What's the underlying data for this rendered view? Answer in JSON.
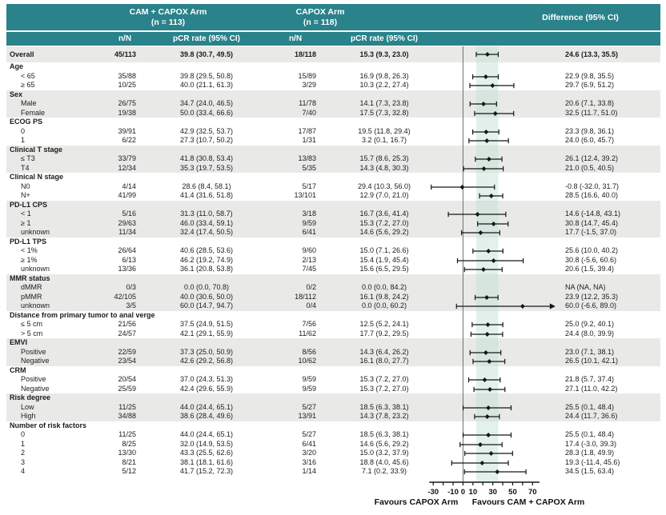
{
  "colors": {
    "header_teal": "#2a828b",
    "stripe_gray": "#e9eae8",
    "row_white": "#ffffff",
    "band_mint": "#bfe0d2",
    "zero_line": "#6e6e6e",
    "ci_line": "#161616",
    "text": "#1b1b1b"
  },
  "chart_data": {
    "type": "forest",
    "arms": [
      {
        "name": "CAM + CAPOX Arm",
        "n_label": "(n = 113)"
      },
      {
        "name": "CAPOX Arm",
        "n_label": "(n = 118)"
      }
    ],
    "columns": [
      "n/N",
      "pCR rate (95% CI)",
      "n/N",
      "pCR rate (95% CI)"
    ],
    "difference_label": "Difference (95% CI)",
    "axis": {
      "ticks": [
        -30,
        -20,
        -10,
        0,
        10,
        20,
        30,
        40,
        50,
        60,
        70
      ],
      "labeled_ticks": [
        -30,
        -10,
        0,
        10,
        30,
        50,
        70
      ],
      "domain": [
        -35,
        98
      ],
      "axis_span": [
        -34,
        77
      ],
      "zero_reference": 0,
      "overall_band": [
        13.3,
        35.5
      ],
      "grid": false
    },
    "favours": {
      "left": "Favours CAPOX Arm",
      "right": "Favours CAM + CAPOX Arm"
    },
    "sections": [
      {
        "label": null,
        "shaded": true,
        "rows": [
          {
            "label": "Overall",
            "bold": true,
            "cam_nN": "45/113",
            "cam_pcr": "39.8 (30.7, 49.5)",
            "capox_nN": "18/118",
            "capox_pcr": "15.3 (9.3, 23.0)",
            "diff": "24.6 (13.3, 35.5)",
            "est": 24.6,
            "lo": 13.3,
            "hi": 35.5
          }
        ]
      },
      {
        "label": "Age",
        "shaded": false,
        "rows": [
          {
            "label": "< 65",
            "cam_nN": "35/88",
            "cam_pcr": "39.8 (29.5, 50.8)",
            "capox_nN": "15/89",
            "capox_pcr": "16.9 (9.8, 26.3)",
            "diff": "22.9 (9.8, 35.5)",
            "est": 22.9,
            "lo": 9.8,
            "hi": 35.5
          },
          {
            "label": "≥ 65",
            "cam_nN": "10/25",
            "cam_pcr": "40.0 (21.1, 61.3)",
            "capox_nN": "3/29",
            "capox_pcr": "10.3 (2.2, 27.4)",
            "diff": "29.7 (6.9, 51.2)",
            "est": 29.7,
            "lo": 6.9,
            "hi": 51.2
          }
        ]
      },
      {
        "label": "Sex",
        "shaded": true,
        "rows": [
          {
            "label": "Male",
            "cam_nN": "26/75",
            "cam_pcr": "34.7 (24.0, 46.5)",
            "capox_nN": "11/78",
            "capox_pcr": "14.1 (7.3, 23.8)",
            "diff": "20.6 (7.1, 33.8)",
            "est": 20.6,
            "lo": 7.1,
            "hi": 33.8
          },
          {
            "label": "Female",
            "cam_nN": "19/38",
            "cam_pcr": "50.0 (33.4, 66.6)",
            "capox_nN": "7/40",
            "capox_pcr": "17.5 (7.3, 32.8)",
            "diff": "32.5 (11.7, 51.0)",
            "est": 32.5,
            "lo": 11.7,
            "hi": 51.0
          }
        ]
      },
      {
        "label": "ECOG PS",
        "shaded": false,
        "rows": [
          {
            "label": "0",
            "cam_nN": "39/91",
            "cam_pcr": "42.9 (32.5, 53.7)",
            "capox_nN": "17/87",
            "capox_pcr": "19.5 (11.8, 29.4)",
            "diff": "23.3 (9.8, 36.1)",
            "est": 23.3,
            "lo": 9.8,
            "hi": 36.1
          },
          {
            "label": "1",
            "cam_nN": "6/22",
            "cam_pcr": "27.3 (10.7, 50.2)",
            "capox_nN": "1/31",
            "capox_pcr": "3.2 (0.1, 16.7)",
            "diff": "24.0 (6.0, 45.7)",
            "est": 24.0,
            "lo": 6.0,
            "hi": 45.7
          }
        ]
      },
      {
        "label": "Clinical T stage",
        "shaded": true,
        "rows": [
          {
            "label": "≤ T3",
            "cam_nN": "33/79",
            "cam_pcr": "41.8 (30.8, 53.4)",
            "capox_nN": "13/83",
            "capox_pcr": "15.7 (8.6, 25.3)",
            "diff": "26.1 (12.4, 39.2)",
            "est": 26.1,
            "lo": 12.4,
            "hi": 39.2
          },
          {
            "label": "T4",
            "cam_nN": "12/34",
            "cam_pcr": "35.3 (19.7, 53.5)",
            "capox_nN": "5/35",
            "capox_pcr": "14.3 (4.8, 30.3)",
            "diff": "21.0 (0.5, 40.5)",
            "est": 21.0,
            "lo": 0.5,
            "hi": 40.5
          }
        ]
      },
      {
        "label": "Clinical N stage",
        "shaded": false,
        "rows": [
          {
            "label": "N0",
            "cam_nN": "4/14",
            "cam_pcr": "28.6 (8.4, 58.1)",
            "capox_nN": "5/17",
            "capox_pcr": "29.4 (10.3, 56.0)",
            "diff": "-0.8 (-32.0, 31.7)",
            "est": -0.8,
            "lo": -32.0,
            "hi": 31.7
          },
          {
            "label": "N+",
            "cam_nN": "41/99",
            "cam_pcr": "41.4 (31.6, 51.8)",
            "capox_nN": "13/101",
            "capox_pcr": "12.9 (7.0, 21.0)",
            "diff": "28.5 (16.6, 40.0)",
            "est": 28.5,
            "lo": 16.6,
            "hi": 40.0
          }
        ]
      },
      {
        "label": "PD-L1 CPS",
        "shaded": true,
        "rows": [
          {
            "label": "< 1",
            "cam_nN": "5/16",
            "cam_pcr": "31.3 (11.0, 58.7)",
            "capox_nN": "3/18",
            "capox_pcr": "16.7 (3.6, 41.4)",
            "diff": "14.6 (-14.8, 43.1)",
            "est": 14.6,
            "lo": -14.8,
            "hi": 43.1
          },
          {
            "label": "≥ 1",
            "cam_nN": "29/63",
            "cam_pcr": "46.0 (33.4, 59.1)",
            "capox_nN": "9/59",
            "capox_pcr": "15.3 (7.2, 27.0)",
            "diff": "30.8 (14.7, 45.4)",
            "est": 30.8,
            "lo": 14.7,
            "hi": 45.4
          },
          {
            "label": "unknown",
            "cam_nN": "11/34",
            "cam_pcr": "32.4 (17.4, 50.5)",
            "capox_nN": "6/41",
            "capox_pcr": "14.6 (5.6, 29.2)",
            "diff": "17.7 (-1.5, 37.0)",
            "est": 17.7,
            "lo": -1.5,
            "hi": 37.0
          }
        ]
      },
      {
        "label": "PD-L1 TPS",
        "shaded": false,
        "rows": [
          {
            "label": "< 1%",
            "cam_nN": "26/64",
            "cam_pcr": "40.6 (28.5, 53.6)",
            "capox_nN": "9/60",
            "capox_pcr": "15.0 (7.1, 26.6)",
            "diff": "25.6 (10.0, 40.2)",
            "est": 25.6,
            "lo": 10.0,
            "hi": 40.2
          },
          {
            "label": "≥ 1%",
            "cam_nN": "6/13",
            "cam_pcr": "46.2 (19.2, 74.9)",
            "capox_nN": "2/13",
            "capox_pcr": "15.4 (1.9, 45.4)",
            "diff": "30.8 (-5.6, 60.6)",
            "est": 30.8,
            "lo": -5.6,
            "hi": 60.6
          },
          {
            "label": "unknown",
            "cam_nN": "13/36",
            "cam_pcr": "36.1 (20.8, 53.8)",
            "capox_nN": "7/45",
            "capox_pcr": "15.6 (6.5, 29.5)",
            "diff": "20.6 (1.5, 39.4)",
            "est": 20.6,
            "lo": 1.5,
            "hi": 39.4
          }
        ]
      },
      {
        "label": "MMR status",
        "shaded": true,
        "rows": [
          {
            "label": "dMMR",
            "cam_nN": "0/3",
            "cam_pcr": "0.0 (0.0, 70.8)",
            "capox_nN": "0/2",
            "capox_pcr": "0.0 (0.0, 84.2)",
            "diff": "NA (NA, NA)",
            "est": null,
            "lo": null,
            "hi": null
          },
          {
            "label": "pMMR",
            "cam_nN": "42/105",
            "cam_pcr": "40.0 (30.6, 50.0)",
            "capox_nN": "18/112",
            "capox_pcr": "16.1 (9.8, 24.2)",
            "diff": "23.9 (12.2, 35.3)",
            "est": 23.9,
            "lo": 12.2,
            "hi": 35.3
          },
          {
            "label": "unknown",
            "cam_nN": "3/5",
            "cam_pcr": "60.0 (14.7, 94.7)",
            "capox_nN": "0/4",
            "capox_pcr": "0.0 (0.0, 60.2)",
            "diff": "60.0 (-6.6, 89.0)",
            "est": 60.0,
            "lo": -6.6,
            "hi": 89.0,
            "arrow": true
          }
        ]
      },
      {
        "label": "Distance from primary tumor to anal verge",
        "shaded": false,
        "rows": [
          {
            "label": "≤ 5 cm",
            "cam_nN": "21/56",
            "cam_pcr": "37.5 (24.9, 51.5)",
            "capox_nN": "7/56",
            "capox_pcr": "12.5 (5.2, 24.1)",
            "diff": "25.0 (9.2, 40.1)",
            "est": 25.0,
            "lo": 9.2,
            "hi": 40.1
          },
          {
            "label": "> 5 cm",
            "cam_nN": "24/57",
            "cam_pcr": "42.1 (29.1, 55.9)",
            "capox_nN": "11/62",
            "capox_pcr": "17.7 (9.2, 29.5)",
            "diff": "24.4 (8.0, 39.9)",
            "est": 24.4,
            "lo": 8.0,
            "hi": 39.9
          }
        ]
      },
      {
        "label": "EMVI",
        "shaded": true,
        "rows": [
          {
            "label": "Positive",
            "cam_nN": "22/59",
            "cam_pcr": "37.3 (25.0, 50.9)",
            "capox_nN": "8/56",
            "capox_pcr": "14.3 (6.4, 26.2)",
            "diff": "23.0 (7.1, 38.1)",
            "est": 23.0,
            "lo": 7.1,
            "hi": 38.1
          },
          {
            "label": "Negative",
            "cam_nN": "23/54",
            "cam_pcr": "42.6 (29.2, 56.8)",
            "capox_nN": "10/62",
            "capox_pcr": "16.1 (8.0, 27.7)",
            "diff": "26.5 (10.1, 42.1)",
            "est": 26.5,
            "lo": 10.1,
            "hi": 42.1
          }
        ]
      },
      {
        "label": "CRM",
        "shaded": false,
        "rows": [
          {
            "label": "Positive",
            "cam_nN": "20/54",
            "cam_pcr": "37.0 (24.3, 51.3)",
            "capox_nN": "9/59",
            "capox_pcr": "15.3 (7.2, 27.0)",
            "diff": "21.8 (5.7, 37.4)",
            "est": 21.8,
            "lo": 5.7,
            "hi": 37.4
          },
          {
            "label": "Negative",
            "cam_nN": "25/59",
            "cam_pcr": "42.4 (29.6, 55.9)",
            "capox_nN": "9/59",
            "capox_pcr": "15.3 (7.2, 27.0)",
            "diff": "27.1 (11.0, 42.2)",
            "est": 27.1,
            "lo": 11.0,
            "hi": 42.2
          }
        ]
      },
      {
        "label": "Risk degree",
        "shaded": true,
        "rows": [
          {
            "label": "Low",
            "cam_nN": "11/25",
            "cam_pcr": "44.0 (24.4, 65.1)",
            "capox_nN": "5/27",
            "capox_pcr": "18.5 (6.3, 38.1)",
            "diff": "25.5 (0.1, 48.4)",
            "est": 25.5,
            "lo": 0.1,
            "hi": 48.4
          },
          {
            "label": "High",
            "cam_nN": "34/88",
            "cam_pcr": "38.6 (28.4, 49.6)",
            "capox_nN": "13/91",
            "capox_pcr": "14.3 (7.8, 23.2)",
            "diff": "24.4 (11.7, 36.6)",
            "est": 24.4,
            "lo": 11.7,
            "hi": 36.6
          }
        ]
      },
      {
        "label": "Number of risk factors",
        "shaded": false,
        "rows": [
          {
            "label": "0",
            "cam_nN": "11/25",
            "cam_pcr": "44.0 (24.4, 65.1)",
            "capox_nN": "5/27",
            "capox_pcr": "18.5 (6.3, 38.1)",
            "diff": "25.5 (0.1, 48.4)",
            "est": 25.5,
            "lo": 0.1,
            "hi": 48.4
          },
          {
            "label": "1",
            "cam_nN": "8/25",
            "cam_pcr": "32.0 (14.9, 53.5)",
            "capox_nN": "6/41",
            "capox_pcr": "14.6 (5.6, 29.2)",
            "diff": "17.4 (-3.0, 39.3)",
            "est": 17.4,
            "lo": -3.0,
            "hi": 39.3
          },
          {
            "label": "2",
            "cam_nN": "13/30",
            "cam_pcr": "43.3 (25.5, 62.6)",
            "capox_nN": "3/20",
            "capox_pcr": "15.0 (3.2, 37.9)",
            "diff": "28.3 (1.8, 49.9)",
            "est": 28.3,
            "lo": 1.8,
            "hi": 49.9
          },
          {
            "label": "3",
            "cam_nN": "8/21",
            "cam_pcr": "38.1 (18.1, 61.6)",
            "capox_nN": "3/16",
            "capox_pcr": "18.8 (4.0, 45.6)",
            "diff": "19.3 (-11.4, 45.6)",
            "est": 19.3,
            "lo": -11.4,
            "hi": 45.6
          },
          {
            "label": "4",
            "cam_nN": "5/12",
            "cam_pcr": "41.7 (15.2, 72.3)",
            "capox_nN": "1/14",
            "capox_pcr": "7.1 (0.2, 33.9)",
            "diff": "34.5 (1.5, 63.4)",
            "est": 34.5,
            "lo": 1.5,
            "hi": 63.4
          }
        ]
      }
    ]
  }
}
